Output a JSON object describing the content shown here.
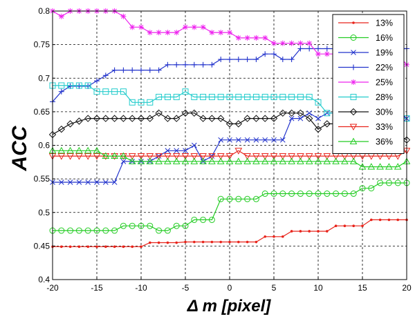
{
  "chart_data": {
    "type": "line",
    "title": "",
    "xlabel": "Δ m [pixel]",
    "ylabel": "ACC",
    "xlim": [
      -20,
      20
    ],
    "ylim": [
      0.4,
      0.8
    ],
    "xticks": [
      -20,
      -15,
      -10,
      -5,
      0,
      5,
      10,
      15,
      20
    ],
    "yticks": [
      0.4,
      0.45,
      0.5,
      0.55,
      0.6,
      0.65,
      0.7,
      0.75,
      0.8
    ],
    "xtick_labels": [
      "-20",
      "-15",
      "-10",
      "-5",
      "0",
      "5",
      "10",
      "15",
      "20"
    ],
    "ytick_labels": [
      "0.4",
      "0.45",
      "0.5",
      "0.55",
      "0.6",
      "0.65",
      "0.7",
      "0.75",
      "0.8"
    ],
    "grid": true,
    "legend_position": "top-right",
    "x": [
      -20,
      -19,
      -18,
      -17,
      -16,
      -15,
      -14,
      -13,
      -12,
      -11,
      -10,
      -9,
      -8,
      -7,
      -6,
      -5,
      -4,
      -3,
      -2,
      -1,
      0,
      1,
      2,
      3,
      4,
      5,
      6,
      7,
      8,
      9,
      10,
      11,
      12,
      13,
      14,
      15,
      16,
      17,
      18,
      19,
      20
    ],
    "series": [
      {
        "name": "13%",
        "color": "#e8231a",
        "marker": "dot",
        "values": [
          0.449,
          0.449,
          0.449,
          0.449,
          0.449,
          0.449,
          0.449,
          0.449,
          0.449,
          0.449,
          0.449,
          0.455,
          0.455,
          0.455,
          0.455,
          0.456,
          0.456,
          0.456,
          0.456,
          0.456,
          0.456,
          0.456,
          0.456,
          0.456,
          0.464,
          0.464,
          0.464,
          0.472,
          0.472,
          0.472,
          0.472,
          0.472,
          0.48,
          0.48,
          0.48,
          0.48,
          0.489,
          0.489,
          0.489,
          0.489,
          0.489
        ]
      },
      {
        "name": "16%",
        "color": "#22cc22",
        "marker": "circle",
        "values": [
          0.473,
          0.473,
          0.473,
          0.473,
          0.473,
          0.473,
          0.473,
          0.473,
          0.48,
          0.48,
          0.48,
          0.48,
          0.473,
          0.473,
          0.48,
          0.48,
          0.489,
          0.489,
          0.489,
          0.52,
          0.52,
          0.52,
          0.52,
          0.52,
          0.528,
          0.528,
          0.528,
          0.528,
          0.528,
          0.528,
          0.528,
          0.528,
          0.528,
          0.528,
          0.528,
          0.536,
          0.536,
          0.544,
          0.544,
          0.544,
          0.544
        ]
      },
      {
        "name": "19%",
        "color": "#2233cc",
        "marker": "x",
        "values": [
          0.545,
          0.545,
          0.545,
          0.545,
          0.545,
          0.545,
          0.545,
          0.545,
          0.576,
          0.576,
          0.576,
          0.576,
          0.584,
          0.592,
          0.592,
          0.592,
          0.6,
          0.576,
          0.584,
          0.608,
          0.608,
          0.608,
          0.608,
          0.608,
          0.608,
          0.608,
          0.608,
          0.64,
          0.64,
          0.648,
          0.64,
          0.648,
          0.648,
          0.648,
          0.648,
          0.648,
          0.648,
          0.648,
          0.648,
          0.648,
          0.64
        ]
      },
      {
        "name": "22%",
        "color": "#2233cc",
        "marker": "plus",
        "values": [
          0.665,
          0.68,
          0.688,
          0.688,
          0.688,
          0.696,
          0.704,
          0.712,
          0.712,
          0.712,
          0.712,
          0.712,
          0.712,
          0.72,
          0.72,
          0.72,
          0.72,
          0.72,
          0.72,
          0.728,
          0.728,
          0.728,
          0.728,
          0.728,
          0.736,
          0.736,
          0.728,
          0.728,
          0.744,
          0.744,
          0.744,
          0.744,
          0.744,
          0.744,
          0.744,
          0.744,
          0.744,
          0.744,
          0.744,
          0.744,
          0.744
        ]
      },
      {
        "name": "25%",
        "color": "#ee22ee",
        "marker": "star",
        "values": [
          0.8,
          0.792,
          0.8,
          0.8,
          0.8,
          0.8,
          0.8,
          0.8,
          0.792,
          0.776,
          0.776,
          0.768,
          0.768,
          0.768,
          0.768,
          0.776,
          0.776,
          0.776,
          0.768,
          0.768,
          0.768,
          0.76,
          0.76,
          0.76,
          0.76,
          0.752,
          0.752,
          0.752,
          0.752,
          0.752,
          0.736,
          0.736,
          0.736,
          0.736,
          0.736,
          0.736,
          0.736,
          0.736,
          0.736,
          0.736,
          0.72
        ]
      },
      {
        "name": "28%",
        "color": "#22cccc",
        "marker": "square",
        "values": [
          0.689,
          0.689,
          0.689,
          0.689,
          0.689,
          0.68,
          0.68,
          0.68,
          0.68,
          0.664,
          0.664,
          0.664,
          0.672,
          0.672,
          0.672,
          0.68,
          0.672,
          0.672,
          0.672,
          0.672,
          0.672,
          0.672,
          0.672,
          0.672,
          0.672,
          0.672,
          0.672,
          0.672,
          0.672,
          0.672,
          0.664,
          0.648,
          0.648,
          0.648,
          0.648,
          0.64,
          0.64,
          0.64,
          0.64,
          0.64,
          0.64
        ]
      },
      {
        "name": "30%",
        "color": "#111111",
        "marker": "diamond",
        "values": [
          0.616,
          0.624,
          0.632,
          0.636,
          0.64,
          0.64,
          0.64,
          0.64,
          0.64,
          0.64,
          0.64,
          0.64,
          0.648,
          0.64,
          0.64,
          0.648,
          0.648,
          0.64,
          0.64,
          0.64,
          0.632,
          0.632,
          0.64,
          0.64,
          0.64,
          0.64,
          0.648,
          0.648,
          0.648,
          0.64,
          0.624,
          0.632,
          0.632,
          0.624,
          0.624,
          0.616,
          0.616,
          0.616,
          0.616,
          0.616,
          0.608
        ]
      },
      {
        "name": "33%",
        "color": "#e8231a",
        "marker": "triangle-down",
        "values": [
          0.584,
          0.584,
          0.584,
          0.584,
          0.584,
          0.584,
          0.584,
          0.584,
          0.584,
          0.584,
          0.584,
          0.584,
          0.584,
          0.584,
          0.584,
          0.584,
          0.584,
          0.584,
          0.584,
          0.584,
          0.584,
          0.592,
          0.584,
          0.584,
          0.584,
          0.584,
          0.584,
          0.584,
          0.584,
          0.584,
          0.584,
          0.584,
          0.584,
          0.584,
          0.584,
          0.584,
          0.584,
          0.584,
          0.584,
          0.584,
          0.592
        ]
      },
      {
        "name": "36%",
        "color": "#22cc22",
        "marker": "triangle-up",
        "values": [
          0.592,
          0.592,
          0.592,
          0.592,
          0.592,
          0.592,
          0.584,
          0.584,
          0.584,
          0.576,
          0.576,
          0.576,
          0.576,
          0.576,
          0.576,
          0.576,
          0.576,
          0.576,
          0.576,
          0.576,
          0.576,
          0.576,
          0.576,
          0.576,
          0.576,
          0.576,
          0.576,
          0.576,
          0.576,
          0.576,
          0.576,
          0.576,
          0.576,
          0.576,
          0.576,
          0.568,
          0.568,
          0.568,
          0.568,
          0.568,
          0.576
        ]
      }
    ]
  }
}
